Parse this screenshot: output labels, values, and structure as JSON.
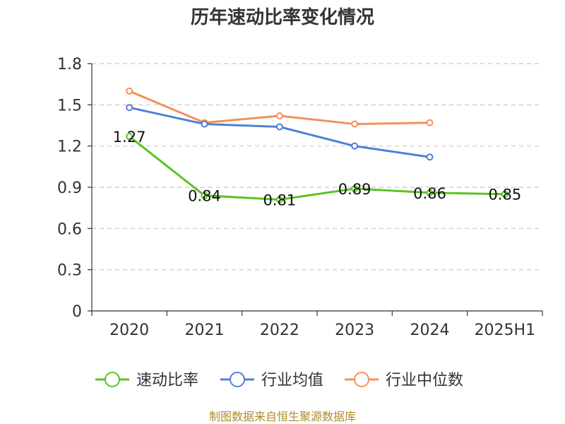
{
  "chart_data": {
    "type": "line",
    "title": "历年速动比率变化情况",
    "categories": [
      "2020",
      "2021",
      "2022",
      "2023",
      "2024",
      "2025H1"
    ],
    "ylim": [
      0,
      1.8
    ],
    "yticks": [
      "0",
      "0.3",
      "0.6",
      "0.9",
      "1.2",
      "1.5",
      "1.8"
    ],
    "grid": true,
    "legend_position": "bottom",
    "series": [
      {
        "name": "速动比率",
        "color": "#5cc323",
        "values": [
          1.27,
          0.84,
          0.81,
          0.89,
          0.86,
          0.85
        ],
        "labels": [
          "1.27",
          "0.84",
          "0.81",
          "0.89",
          "0.86",
          "0.85"
        ]
      },
      {
        "name": "行业均值",
        "color": "#4f80d6",
        "values": [
          1.48,
          1.36,
          1.34,
          1.2,
          1.12,
          null
        ]
      },
      {
        "name": "行业中位数",
        "color": "#f68f5b",
        "values": [
          1.6,
          1.37,
          1.42,
          1.36,
          1.37,
          null
        ]
      }
    ]
  },
  "source": "制图数据来自恒生聚源数据库"
}
